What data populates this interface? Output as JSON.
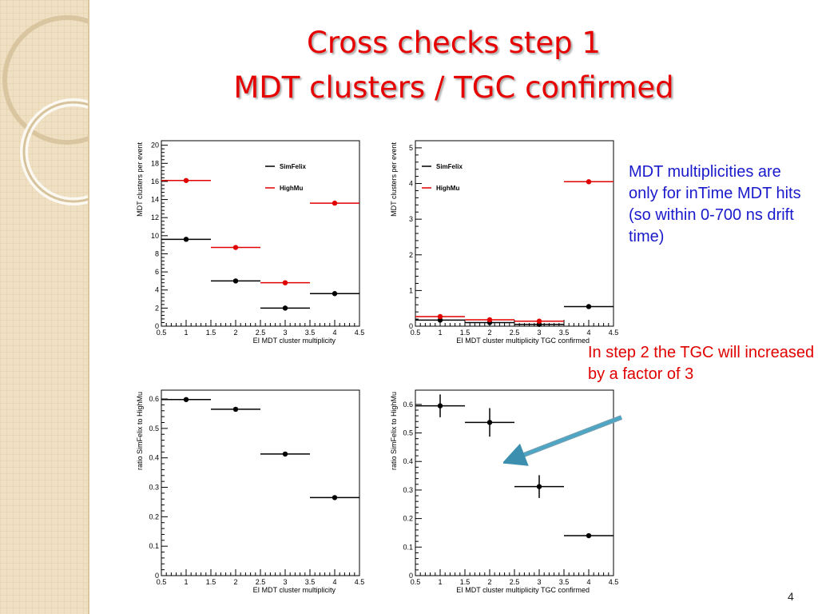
{
  "slide": {
    "title_line1": "Cross checks step 1",
    "title_line2": "MDT clusters / TGC confirmed",
    "note_blue": "MDT multiplicities are only for inTime MDT hits (so within 0-700 ns drift time)",
    "note_red": "In step 2 the TGC will increased by a factor of 3",
    "page_number": "4"
  },
  "chart_data": [
    {
      "type": "scatter",
      "xlabel": "EI MDT cluster multiplicity",
      "ylabel": "MDT clusters per event",
      "xlim": [
        0.5,
        4.5
      ],
      "ylim": [
        0,
        20.5
      ],
      "xticks": [
        0.5,
        1,
        1.5,
        2,
        2.5,
        3,
        3.5,
        4,
        4.5
      ],
      "yticks": [
        0,
        2,
        4,
        6,
        8,
        10,
        12,
        14,
        16,
        18,
        20
      ],
      "legend": "top-right",
      "series": [
        {
          "name": "SimFelix",
          "color": "#000000",
          "x": [
            1,
            2,
            3,
            4
          ],
          "y": [
            9.6,
            5.0,
            2.0,
            3.6
          ],
          "xerr": 0.5,
          "yerr": [
            0,
            0,
            0,
            0
          ]
        },
        {
          "name": "HighMu",
          "color": "#e00000",
          "x": [
            1,
            2,
            3,
            4
          ],
          "y": [
            16.1,
            8.7,
            4.8,
            13.6
          ],
          "xerr": 0.5,
          "yerr": [
            0,
            0,
            0,
            0
          ]
        }
      ]
    },
    {
      "type": "scatter",
      "xlabel": "EI MDT cluster multiplicity TGC confirmed",
      "ylabel": "MDT clusters per event",
      "xlim": [
        0.5,
        4.5
      ],
      "ylim": [
        0,
        5.2
      ],
      "xticks": [
        0.5,
        1,
        1.5,
        2,
        2.5,
        3,
        3.5,
        4,
        4.5
      ],
      "yticks": [
        0,
        1,
        2,
        3,
        4,
        5
      ],
      "legend": "top-left",
      "series": [
        {
          "name": "SimFelix",
          "color": "#000000",
          "x": [
            1,
            2,
            3,
            4
          ],
          "y": [
            0.17,
            0.1,
            0.05,
            0.55
          ],
          "xerr": 0.5,
          "yerr": [
            0,
            0,
            0,
            0
          ]
        },
        {
          "name": "HighMu",
          "color": "#e00000",
          "x": [
            1,
            2,
            3,
            4
          ],
          "y": [
            0.27,
            0.18,
            0.14,
            4.05
          ],
          "xerr": 0.5,
          "yerr": [
            0,
            0,
            0,
            0
          ]
        }
      ]
    },
    {
      "type": "scatter",
      "xlabel": "EI MDT cluster multiplicity",
      "ylabel": "ratio SimFelix to HighMu",
      "xlim": [
        0.5,
        4.5
      ],
      "ylim": [
        0,
        0.63
      ],
      "xticks": [
        0.5,
        1,
        1.5,
        2,
        2.5,
        3,
        3.5,
        4,
        4.5
      ],
      "yticks": [
        0,
        0.1,
        0.2,
        0.3,
        0.4,
        0.5,
        0.6
      ],
      "series": [
        {
          "color": "#000000",
          "x": [
            1,
            2,
            3,
            4
          ],
          "y": [
            0.598,
            0.565,
            0.413,
            0.265
          ],
          "xerr": 0.5,
          "yerr": [
            0,
            0,
            0,
            0
          ]
        }
      ]
    },
    {
      "type": "scatter",
      "xlabel": "EI MDT cluster multiplicity TGC confirmed",
      "ylabel": "ratio SimFelix to HighMu",
      "xlim": [
        0.5,
        4.5
      ],
      "ylim": [
        0,
        0.65
      ],
      "xticks": [
        0.5,
        1,
        1.5,
        2,
        2.5,
        3,
        3.5,
        4,
        4.5
      ],
      "yticks": [
        0,
        0.1,
        0.2,
        0.3,
        0.4,
        0.5,
        0.6
      ],
      "series": [
        {
          "color": "#000000",
          "x": [
            1,
            2,
            3,
            4
          ],
          "y": [
            0.595,
            0.537,
            0.312,
            0.14
          ],
          "xerr": 0.5,
          "yerr": [
            0.04,
            0.05,
            0.04,
            0
          ]
        }
      ]
    }
  ]
}
